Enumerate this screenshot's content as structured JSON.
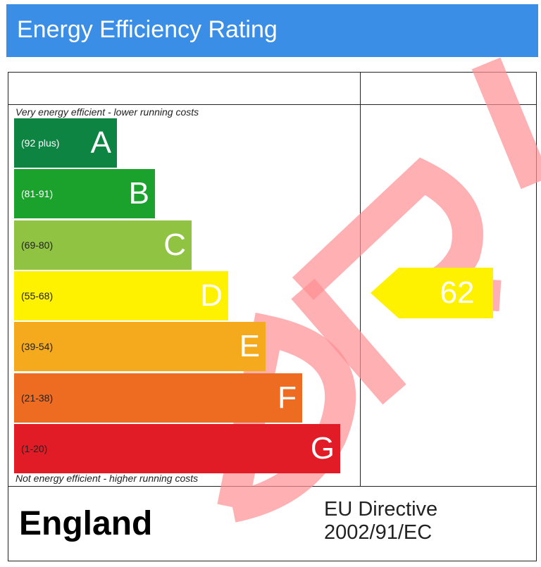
{
  "title": "Energy Efficiency Rating",
  "top_note": "Very energy efficient - lower running costs",
  "bottom_note": "Not energy efficient - higher running costs",
  "country": "England",
  "directive_line1": "EU Directive",
  "directive_line2": "2002/91/EC",
  "watermark": "DRAFT",
  "chart_data": {
    "type": "bar",
    "categories": [
      "A",
      "B",
      "C",
      "D",
      "E",
      "F",
      "G"
    ],
    "bands": [
      {
        "letter": "A",
        "range": "(92 plus)",
        "color": "#0e8443",
        "range_color": "#ffffff"
      },
      {
        "letter": "B",
        "range": "(81-91)",
        "color": "#1aa22c",
        "range_color": "#ffffff"
      },
      {
        "letter": "C",
        "range": "(69-80)",
        "color": "#8fc341",
        "range_color": "#222222"
      },
      {
        "letter": "D",
        "range": "(55-68)",
        "color": "#fff200",
        "range_color": "#222222"
      },
      {
        "letter": "E",
        "range": "(39-54)",
        "color": "#f5aa1e",
        "range_color": "#222222"
      },
      {
        "letter": "F",
        "range": "(21-38)",
        "color": "#ee6b22",
        "range_color": "#222222"
      },
      {
        "letter": "G",
        "range": "(1-20)",
        "color": "#e21c26",
        "range_color": "#222222"
      }
    ],
    "current_rating": {
      "value": 62,
      "band": "D",
      "color": "#fff200"
    }
  }
}
